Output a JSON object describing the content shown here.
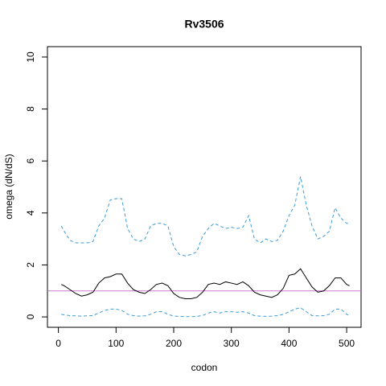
{
  "chart_data": {
    "type": "line",
    "title": "Rv3506",
    "xlabel": "codon",
    "ylabel": "omega (dN/dS)",
    "x": [
      5,
      10,
      20,
      30,
      40,
      50,
      60,
      70,
      80,
      90,
      100,
      110,
      120,
      130,
      140,
      150,
      160,
      170,
      180,
      190,
      200,
      210,
      220,
      230,
      240,
      250,
      260,
      270,
      280,
      290,
      300,
      310,
      320,
      330,
      340,
      350,
      360,
      370,
      380,
      390,
      400,
      410,
      420,
      430,
      440,
      450,
      460,
      470,
      480,
      490,
      500,
      505
    ],
    "series": [
      {
        "color": "#000000",
        "dash": false,
        "values": [
          1.25,
          1.2,
          1.05,
          0.9,
          0.8,
          0.85,
          0.95,
          1.3,
          1.5,
          1.55,
          1.65,
          1.65,
          1.3,
          1.05,
          0.95,
          0.9,
          1.05,
          1.25,
          1.3,
          1.2,
          0.9,
          0.75,
          0.7,
          0.7,
          0.75,
          0.95,
          1.25,
          1.3,
          1.25,
          1.35,
          1.3,
          1.25,
          1.35,
          1.2,
          0.95,
          0.85,
          0.8,
          0.75,
          0.85,
          1.1,
          1.6,
          1.65,
          1.85,
          1.5,
          1.15,
          0.95,
          1.0,
          1.2,
          1.5,
          1.5,
          1.25,
          1.2
        ]
      },
      {
        "color": "#3a9ad9",
        "dash": true,
        "values": [
          3.5,
          3.3,
          2.95,
          2.85,
          2.85,
          2.85,
          2.9,
          3.5,
          3.8,
          4.5,
          4.55,
          4.55,
          3.4,
          3.0,
          2.9,
          3.0,
          3.5,
          3.6,
          3.6,
          3.5,
          2.7,
          2.4,
          2.35,
          2.4,
          2.5,
          3.1,
          3.4,
          3.6,
          3.5,
          3.4,
          3.45,
          3.4,
          3.45,
          3.9,
          3.0,
          2.85,
          3.0,
          2.9,
          2.95,
          3.3,
          3.9,
          4.3,
          5.4,
          4.3,
          3.5,
          3.0,
          3.1,
          3.3,
          4.2,
          3.8,
          3.6,
          3.6
        ]
      },
      {
        "color": "#3a9ad9",
        "dash": true,
        "values": [
          0.1,
          0.08,
          0.05,
          0.04,
          0.03,
          0.04,
          0.05,
          0.15,
          0.25,
          0.3,
          0.3,
          0.25,
          0.1,
          0.05,
          0.03,
          0.04,
          0.1,
          0.2,
          0.2,
          0.1,
          0.03,
          0.02,
          0.01,
          0.01,
          0.02,
          0.05,
          0.15,
          0.2,
          0.15,
          0.2,
          0.2,
          0.18,
          0.2,
          0.15,
          0.05,
          0.03,
          0.02,
          0.03,
          0.05,
          0.1,
          0.2,
          0.3,
          0.35,
          0.2,
          0.05,
          0.04,
          0.05,
          0.1,
          0.3,
          0.3,
          0.1,
          0.05
        ]
      }
    ],
    "hline": {
      "value": 1,
      "color": "#c77cc7"
    },
    "xlim": [
      -19,
      525
    ],
    "xticks": [
      0,
      100,
      200,
      300,
      400,
      500
    ],
    "ylim": [
      -0.4,
      10.4
    ],
    "yticks": [
      0,
      2,
      4,
      6,
      8,
      10
    ]
  }
}
